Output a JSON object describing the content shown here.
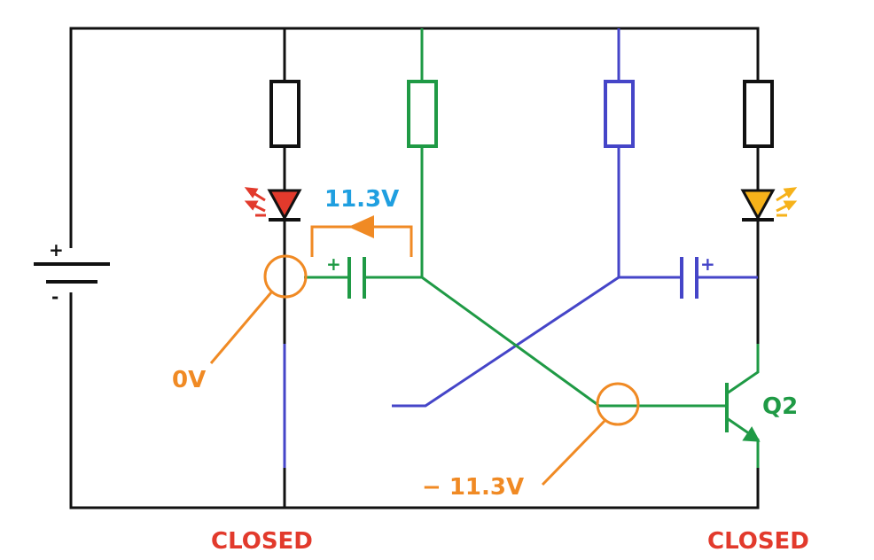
{
  "colors": {
    "black": "#111111",
    "green": "#1f9a45",
    "blue": "#4545c8",
    "orange": "#f08a24",
    "red": "#e23a2c",
    "cyan": "#1f9fe0",
    "amber": "#f6b21a"
  },
  "labels": {
    "voltage_top": "11.3V",
    "voltage_left": "0V",
    "voltage_bottom": "− 11.3V",
    "transistor": "Q2",
    "battery_plus": "+",
    "battery_minus": "-",
    "cap_left_plus": "+",
    "cap_right_plus": "+",
    "status_left": "CLOSED",
    "status_right": "CLOSED"
  }
}
